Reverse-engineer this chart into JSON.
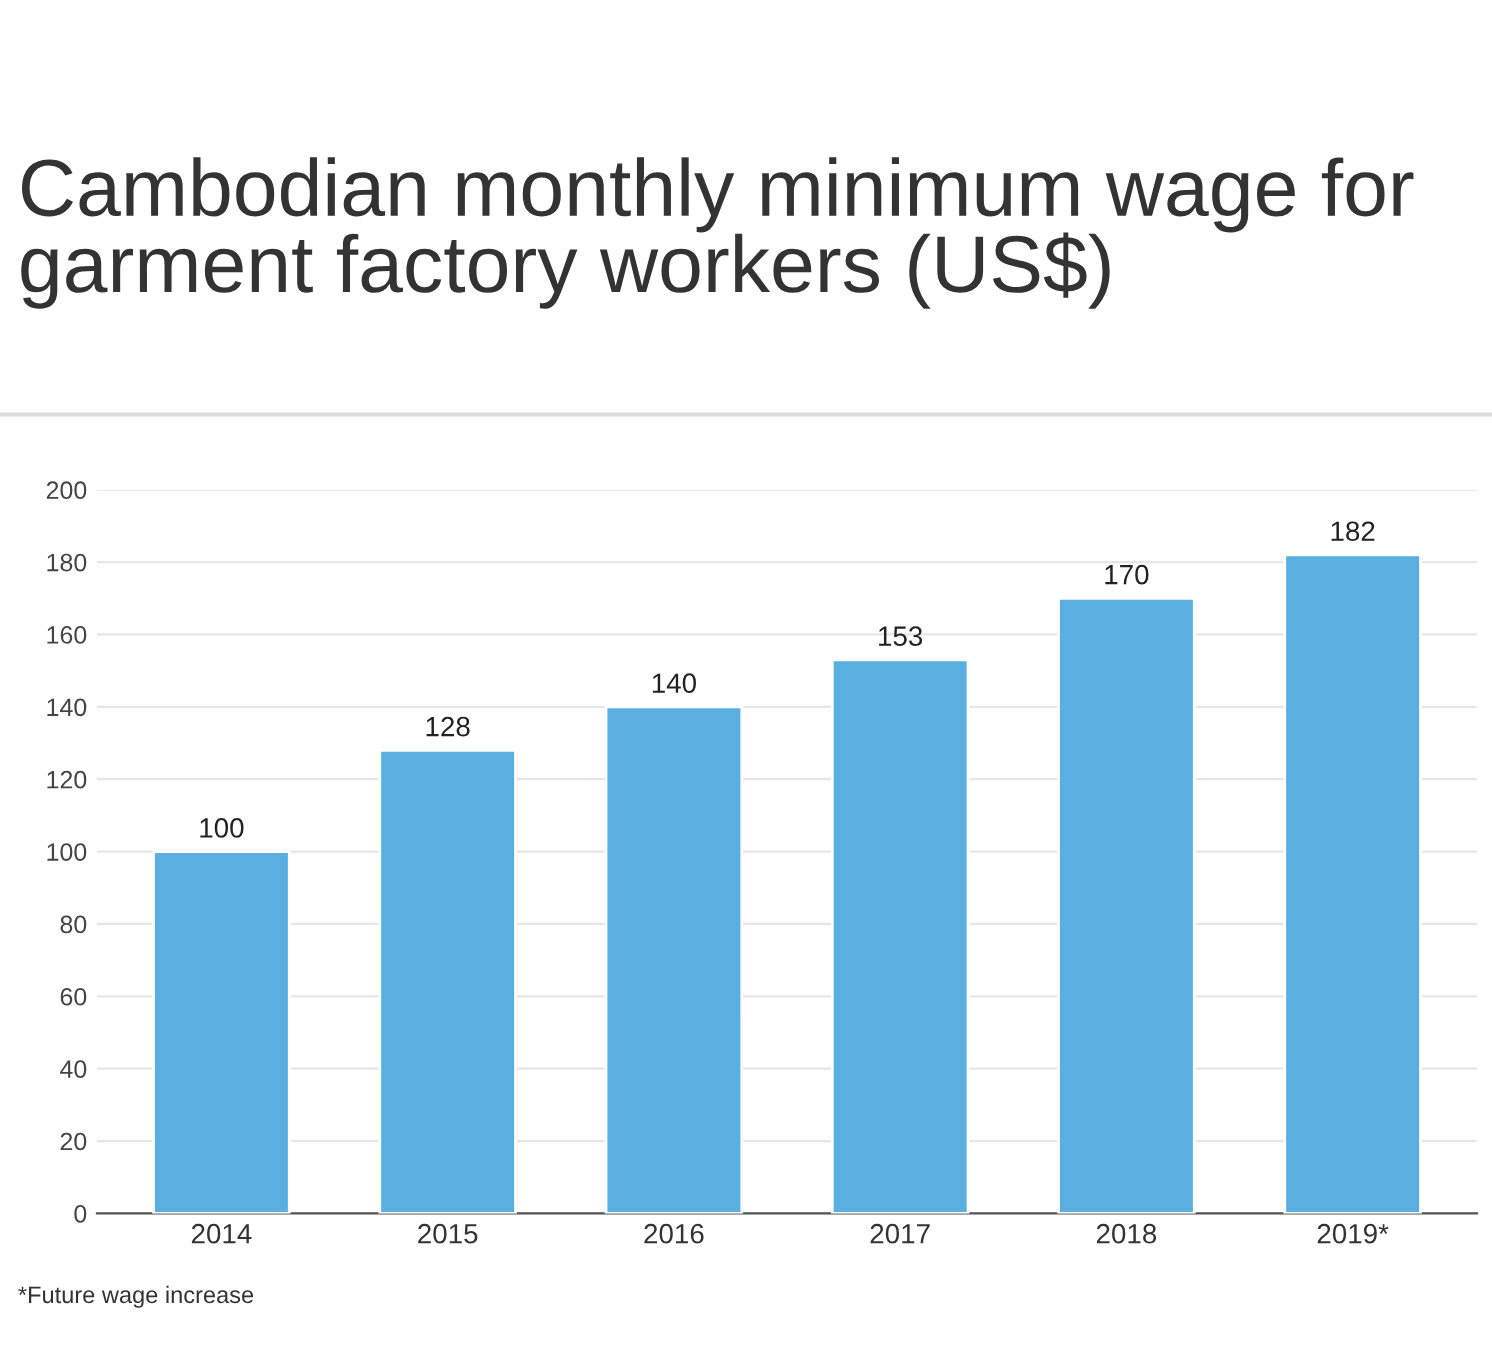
{
  "chart_data": {
    "type": "bar",
    "title": "Cambodian monthly minimum wage for garment factory workers (US$)",
    "categories": [
      "2014",
      "2015",
      "2016",
      "2017",
      "2018",
      "2019*"
    ],
    "values": [
      100,
      128,
      140,
      153,
      170,
      182
    ],
    "color": "#5aafe0",
    "ylim": [
      0,
      200
    ],
    "yticks": [
      0,
      20,
      40,
      60,
      80,
      100,
      120,
      140,
      160,
      180,
      200
    ],
    "grid": "y",
    "data_labels": true,
    "annotations": [
      "*Future wage increase"
    ]
  }
}
